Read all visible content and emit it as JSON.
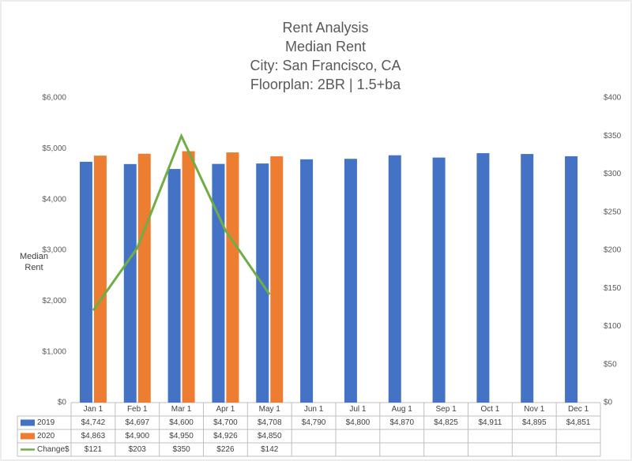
{
  "chart_data": {
    "type": "bar",
    "title": [
      "Rent Analysis",
      "Median Rent",
      "City: San Francisco, CA",
      "Floorplan:   2BR | 1.5+ba"
    ],
    "y_label": "Median Rent",
    "categories": [
      "Jan 1",
      "Feb 1",
      "Mar 1",
      "Apr 1",
      "May 1",
      "Jun 1",
      "Jul 1",
      "Aug 1",
      "Sep 1",
      "Oct 1",
      "Nov 1",
      "Dec 1"
    ],
    "series": [
      {
        "name": "2019",
        "type": "bar",
        "color": "#4472c4",
        "values": [
          4742,
          4697,
          4600,
          4700,
          4708,
          4790,
          4800,
          4870,
          4825,
          4911,
          4895,
          4851
        ],
        "value_labels": [
          "$4,742",
          "$4,697",
          "$4,600",
          "$4,700",
          "$4,708",
          "$4,790",
          "$4,800",
          "$4,870",
          "$4,825",
          "$4,911",
          "$4,895",
          "$4,851"
        ]
      },
      {
        "name": "2020",
        "type": "bar",
        "color": "#ed7d31",
        "values": [
          4863,
          4900,
          4950,
          4926,
          4850,
          null,
          null,
          null,
          null,
          null,
          null,
          null
        ],
        "value_labels": [
          "$4,863",
          "$4,900",
          "$4,950",
          "$4,926",
          "$4,850",
          null,
          null,
          null,
          null,
          null,
          null,
          null
        ]
      },
      {
        "name": "Change$",
        "type": "line",
        "axis": "y2",
        "color": "#70ad47",
        "values": [
          121,
          203,
          350,
          226,
          142,
          null,
          null,
          null,
          null,
          null,
          null,
          null
        ],
        "value_labels": [
          "$121",
          "$203",
          "$350",
          "$226",
          "$142",
          null,
          null,
          null,
          null,
          null,
          null,
          null
        ]
      }
    ],
    "ylim": [
      0,
      6000
    ],
    "yticks": [
      {
        "value": 0,
        "label": "$0"
      },
      {
        "value": 1000,
        "label": "$1,000"
      },
      {
        "value": 2000,
        "label": "$2,000"
      },
      {
        "value": 3000,
        "label": "$3,000"
      },
      {
        "value": 4000,
        "label": "$4,000"
      },
      {
        "value": 5000,
        "label": "$5,000"
      },
      {
        "value": 6000,
        "label": "$6,000"
      }
    ],
    "y2lim": [
      0,
      400
    ],
    "y2ticks": [
      {
        "value": 0,
        "label": "$0"
      },
      {
        "value": 50,
        "label": "$50"
      },
      {
        "value": 100,
        "label": "$100"
      },
      {
        "value": 150,
        "label": "$150"
      },
      {
        "value": 200,
        "label": "$200"
      },
      {
        "value": 250,
        "label": "$250"
      },
      {
        "value": 300,
        "label": "$300"
      },
      {
        "value": 350,
        "label": "$350"
      },
      {
        "value": 400,
        "label": "$400"
      }
    ],
    "grid": false
  }
}
